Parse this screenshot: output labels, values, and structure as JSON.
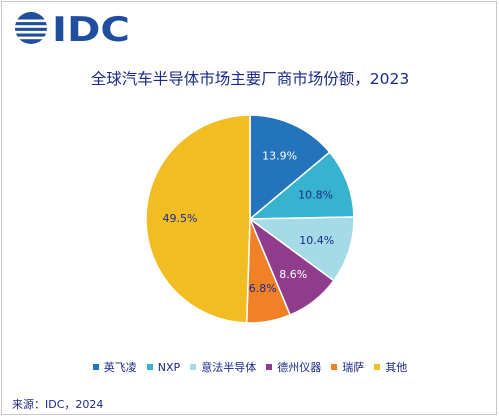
{
  "logo": {
    "text": "IDC",
    "color": "#1f4e9e"
  },
  "chart_data": {
    "type": "pie",
    "title": "全球汽车半导体市场主要厂商市场份额，2023",
    "categories": [
      "英飞凌",
      "NXP",
      "意法半导体",
      "德州仪器",
      "瑞萨",
      "其他"
    ],
    "values": [
      13.9,
      10.8,
      10.4,
      8.6,
      6.8,
      49.5
    ],
    "labels": [
      "13.9%",
      "10.8%",
      "10.4%",
      "8.6%",
      "6.8%",
      "49.5%"
    ],
    "colors": [
      "#2474bb",
      "#38b3cf",
      "#a4dbe6",
      "#8f3c8d",
      "#f08127",
      "#f2bd23"
    ],
    "label_colors": [
      "#ffffff",
      "#1b2a8a",
      "#1b2a8a",
      "#ffffff",
      "#1b2a8a",
      "#1b2a8a"
    ],
    "start": "12 o'clock, clockwise",
    "legend_position": "bottom"
  },
  "source": "来源：IDC，2024"
}
